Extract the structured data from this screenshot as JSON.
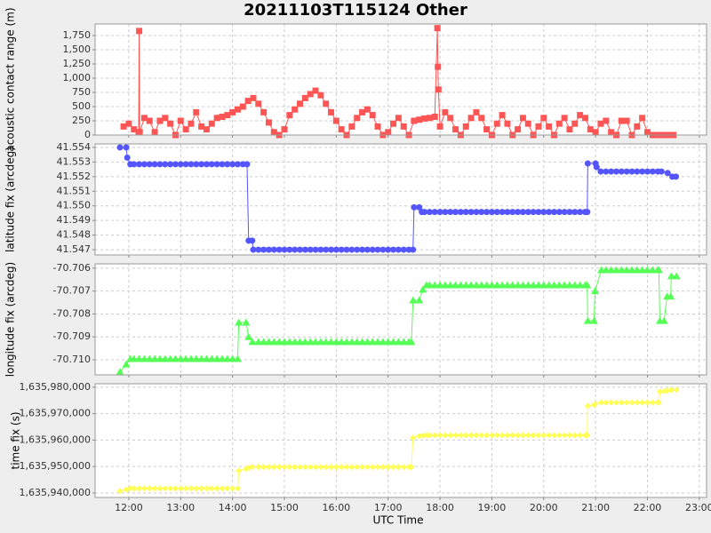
{
  "title": "20211103T115124 Other",
  "xlabel": "UTC Time",
  "xlim": [
    11.35,
    23.14
  ],
  "xticks": [
    {
      "value": 12,
      "label": "12:00"
    },
    {
      "value": 13,
      "label": "13:00"
    },
    {
      "value": 14,
      "label": "14:00"
    },
    {
      "value": 15,
      "label": "15:00"
    },
    {
      "value": 16,
      "label": "16:00"
    },
    {
      "value": 17,
      "label": "17:00"
    },
    {
      "value": 18,
      "label": "18:00"
    },
    {
      "value": 19,
      "label": "19:00"
    },
    {
      "value": 20,
      "label": "20:00"
    },
    {
      "value": 21,
      "label": "21:00"
    },
    {
      "value": 22,
      "label": "22:00"
    },
    {
      "value": 23,
      "label": "23:00"
    }
  ],
  "grid": true,
  "chart_data": [
    {
      "type": "line",
      "ylabel": "acoustic contact range (m)",
      "ylim": [
        0,
        1953
      ],
      "yticks": [
        0,
        250,
        500,
        750,
        {
          "value": 1000,
          "label": "1,000"
        },
        {
          "value": 1250,
          "label": "1,250"
        },
        {
          "value": 1500,
          "label": "1,500"
        },
        {
          "value": 1750,
          "label": "1,750"
        }
      ],
      "x": [
        11.9,
        12.0,
        12.1,
        12.19,
        12.2,
        12.21,
        12.3,
        12.4,
        12.5,
        12.6,
        12.7,
        12.8,
        12.9,
        13.0,
        13.1,
        13.2,
        13.3,
        13.4,
        13.5,
        13.6,
        13.7,
        13.8,
        13.9,
        14.0,
        14.1,
        14.2,
        14.3,
        14.4,
        14.5,
        14.6,
        14.7,
        14.8,
        14.9,
        15.0,
        15.1,
        15.2,
        15.3,
        15.4,
        15.5,
        15.6,
        15.7,
        15.8,
        15.9,
        16.0,
        16.1,
        16.2,
        16.3,
        16.4,
        16.5,
        16.6,
        16.7,
        16.8,
        16.9,
        17.0,
        17.1,
        17.2,
        17.3,
        17.4,
        17.5,
        17.6,
        17.7,
        17.8,
        17.9,
        17.95,
        17.96,
        17.97,
        18.0,
        18.1,
        18.2,
        18.3,
        18.4,
        18.5,
        18.6,
        18.7,
        18.8,
        18.9,
        19.0,
        19.1,
        19.2,
        19.3,
        19.4,
        19.5,
        19.6,
        19.7,
        19.8,
        19.9,
        20.0,
        20.1,
        20.2,
        20.3,
        20.4,
        20.5,
        20.6,
        20.7,
        20.8,
        20.9,
        21.0,
        21.1,
        21.2,
        21.3,
        21.4,
        21.5,
        21.6,
        21.7,
        21.8,
        21.9,
        22.0,
        22.1,
        22.2,
        22.3,
        22.4,
        22.5
      ],
      "series": [
        {
          "color": "#ff5555",
          "marker": "square",
          "values": [
            150,
            200,
            100,
            50,
            1830,
            50,
            300,
            250,
            50,
            250,
            300,
            200,
            0,
            250,
            100,
            200,
            400,
            150,
            100,
            200,
            300,
            320,
            350,
            400,
            450,
            500,
            600,
            650,
            550,
            400,
            220,
            50,
            0,
            100,
            350,
            450,
            550,
            650,
            720,
            780,
            700,
            550,
            400,
            250,
            100,
            0,
            150,
            300,
            400,
            450,
            350,
            150,
            0,
            50,
            200,
            300,
            150,
            0,
            250,
            270,
            290,
            300,
            320,
            1880,
            1200,
            800,
            150,
            400,
            300,
            100,
            0,
            150,
            300,
            400,
            300,
            100,
            0,
            200,
            350,
            200,
            0,
            100,
            300,
            200,
            0,
            150,
            300,
            150,
            0,
            200,
            300,
            100,
            200,
            350,
            300,
            100,
            50,
            200,
            250,
            50,
            0,
            250,
            250,
            0,
            150,
            300,
            50,
            0,
            0,
            0,
            0,
            0
          ]
        }
      ]
    },
    {
      "type": "line",
      "ylabel": "latitude fix (arcdeg)",
      "ylim": [
        41.54664,
        41.55424
      ],
      "yticks": [
        41.547,
        41.548,
        41.549,
        {
          "value": 41.55,
          "label": "41.550"
        },
        41.551,
        41.552,
        41.553,
        41.554
      ],
      "x": [
        11.83,
        11.95,
        11.97,
        12.03,
        12.1,
        12.2,
        12.3,
        12.4,
        12.5,
        12.6,
        12.7,
        12.8,
        12.9,
        13.0,
        13.1,
        13.2,
        13.3,
        13.4,
        13.5,
        13.6,
        13.7,
        13.8,
        13.9,
        14.0,
        14.1,
        14.2,
        14.28,
        14.31,
        14.38,
        14.4,
        14.5,
        14.6,
        14.7,
        14.8,
        14.9,
        15.0,
        15.1,
        15.2,
        15.3,
        15.4,
        15.5,
        15.6,
        15.7,
        15.8,
        15.9,
        16.0,
        16.1,
        16.2,
        16.3,
        16.4,
        16.5,
        16.6,
        16.7,
        16.8,
        16.9,
        17.0,
        17.1,
        17.2,
        17.3,
        17.4,
        17.48,
        17.5,
        17.6,
        17.65,
        17.7,
        17.8,
        17.9,
        18.0,
        18.1,
        18.2,
        18.3,
        18.4,
        18.5,
        18.6,
        18.7,
        18.8,
        18.9,
        19.0,
        19.1,
        19.2,
        19.3,
        19.4,
        19.5,
        19.6,
        19.7,
        19.8,
        19.9,
        20.0,
        20.1,
        20.2,
        20.3,
        20.4,
        20.5,
        20.6,
        20.7,
        20.8,
        20.84,
        20.85,
        21.0,
        21.02,
        21.1,
        21.2,
        21.3,
        21.4,
        21.5,
        21.6,
        21.7,
        21.8,
        21.9,
        22.0,
        22.1,
        22.2,
        22.27,
        22.39,
        22.48,
        22.55
      ],
      "series": [
        {
          "color": "#5555ff",
          "marker": "circle",
          "values": [
            41.554,
            41.554,
            41.5533,
            41.55285,
            41.55285,
            41.55285,
            41.55285,
            41.55285,
            41.55285,
            41.55285,
            41.55285,
            41.55285,
            41.55285,
            41.55285,
            41.55285,
            41.55285,
            41.55285,
            41.55285,
            41.55285,
            41.55285,
            41.55285,
            41.55285,
            41.55285,
            41.55285,
            41.55285,
            41.55285,
            41.55285,
            41.54762,
            41.54762,
            41.547,
            41.547,
            41.547,
            41.547,
            41.547,
            41.547,
            41.547,
            41.547,
            41.547,
            41.547,
            41.547,
            41.547,
            41.547,
            41.547,
            41.547,
            41.547,
            41.547,
            41.547,
            41.547,
            41.547,
            41.547,
            41.547,
            41.547,
            41.547,
            41.547,
            41.547,
            41.547,
            41.547,
            41.547,
            41.547,
            41.547,
            41.547,
            41.5499,
            41.5499,
            41.54958,
            41.54958,
            41.54958,
            41.54958,
            41.54958,
            41.54958,
            41.54958,
            41.54958,
            41.54958,
            41.54958,
            41.54958,
            41.54958,
            41.54958,
            41.54958,
            41.54958,
            41.54958,
            41.54958,
            41.54958,
            41.54958,
            41.54958,
            41.54958,
            41.54958,
            41.54958,
            41.54958,
            41.54958,
            41.54958,
            41.54958,
            41.54958,
            41.54958,
            41.54958,
            41.54958,
            41.54958,
            41.54958,
            41.54958,
            41.5529,
            41.5529,
            41.55265,
            41.55235,
            41.55235,
            41.55235,
            41.55235,
            41.55235,
            41.55235,
            41.55235,
            41.55235,
            41.55235,
            41.55235,
            41.55235,
            41.55235,
            41.55235,
            41.55225,
            41.552,
            41.552
          ]
        }
      ]
    },
    {
      "type": "line",
      "ylabel": "longitude fix (arcdeg)",
      "ylim": [
        -70.71066,
        -70.70581
      ],
      "yticks": [
        {
          "value": -70.71,
          "label": "-70.710"
        },
        -70.709,
        -70.708,
        -70.707,
        -70.706
      ],
      "x": [
        11.83,
        11.95,
        12.03,
        12.1,
        12.2,
        12.3,
        12.4,
        12.5,
        12.6,
        12.7,
        12.8,
        12.9,
        13.0,
        13.1,
        13.2,
        13.3,
        13.4,
        13.5,
        13.6,
        13.7,
        13.8,
        13.9,
        14.0,
        14.1,
        14.12,
        14.26,
        14.31,
        14.38,
        14.5,
        14.6,
        14.7,
        14.8,
        14.9,
        15.0,
        15.1,
        15.2,
        15.3,
        15.4,
        15.5,
        15.6,
        15.7,
        15.8,
        15.9,
        16.0,
        16.1,
        16.2,
        16.3,
        16.4,
        16.5,
        16.6,
        16.7,
        16.8,
        16.9,
        17.0,
        17.1,
        17.2,
        17.3,
        17.4,
        17.45,
        17.48,
        17.6,
        17.67,
        17.74,
        17.8,
        17.9,
        18.0,
        18.1,
        18.2,
        18.3,
        18.4,
        18.5,
        18.6,
        18.7,
        18.8,
        18.9,
        19.0,
        19.1,
        19.2,
        19.3,
        19.4,
        19.5,
        19.6,
        19.7,
        19.8,
        19.9,
        20.0,
        20.1,
        20.2,
        20.3,
        20.4,
        20.5,
        20.6,
        20.7,
        20.8,
        20.84,
        20.85,
        20.97,
        20.99,
        21.11,
        21.2,
        21.3,
        21.4,
        21.5,
        21.6,
        21.7,
        21.8,
        21.9,
        22.0,
        22.1,
        22.2,
        22.22,
        22.24,
        22.32,
        22.38,
        22.45,
        22.46,
        22.56
      ],
      "series": [
        {
          "color": "#55ff55",
          "marker": "triangle",
          "values": [
            -70.71053,
            -70.7102,
            -70.70996,
            -70.70996,
            -70.70996,
            -70.70996,
            -70.70996,
            -70.70996,
            -70.70996,
            -70.70996,
            -70.70996,
            -70.70996,
            -70.70996,
            -70.70996,
            -70.70996,
            -70.70996,
            -70.70996,
            -70.70996,
            -70.70996,
            -70.70996,
            -70.70996,
            -70.70996,
            -70.70996,
            -70.70996,
            -70.70837,
            -70.70837,
            -70.709,
            -70.70922,
            -70.70922,
            -70.70922,
            -70.70922,
            -70.70922,
            -70.70922,
            -70.70922,
            -70.70922,
            -70.70922,
            -70.70922,
            -70.70922,
            -70.70922,
            -70.70922,
            -70.70922,
            -70.70922,
            -70.70922,
            -70.70922,
            -70.70922,
            -70.70922,
            -70.70922,
            -70.70922,
            -70.70922,
            -70.70922,
            -70.70922,
            -70.70922,
            -70.70922,
            -70.70922,
            -70.70922,
            -70.70922,
            -70.70922,
            -70.70922,
            -70.70922,
            -70.7074,
            -70.7074,
            -70.70693,
            -70.70674,
            -70.70674,
            -70.70674,
            -70.70674,
            -70.70674,
            -70.70674,
            -70.70674,
            -70.70674,
            -70.70674,
            -70.70674,
            -70.70674,
            -70.70674,
            -70.70674,
            -70.70674,
            -70.70674,
            -70.70674,
            -70.70674,
            -70.70674,
            -70.70674,
            -70.70674,
            -70.70674,
            -70.70674,
            -70.70674,
            -70.70674,
            -70.70674,
            -70.70674,
            -70.70674,
            -70.70674,
            -70.70674,
            -70.70674,
            -70.70674,
            -70.70674,
            -70.70674,
            -70.7083,
            -70.7083,
            -70.707,
            -70.70608,
            -70.70608,
            -70.70608,
            -70.70608,
            -70.70608,
            -70.70608,
            -70.70608,
            -70.70608,
            -70.70608,
            -70.70608,
            -70.70608,
            -70.70608,
            -70.70608,
            -70.7083,
            -70.7083,
            -70.70723,
            -70.70723,
            -70.70635,
            -70.70635
          ]
        }
      ]
    },
    {
      "type": "line",
      "ylabel": "time fix (s)",
      "ylim": [
        1635938300,
        1635981300
      ],
      "yticks": [
        {
          "value": 1635940000,
          "label": "1,635,940,000"
        },
        {
          "value": 1635950000,
          "label": "1,635,950,000"
        },
        {
          "value": 1635960000,
          "label": "1,635,960,000"
        },
        {
          "value": 1635970000,
          "label": "1,635,970,000"
        },
        {
          "value": 1635980000,
          "label": "1,635,980,000"
        }
      ],
      "x": [
        11.83,
        11.95,
        12.03,
        12.1,
        12.2,
        12.3,
        12.4,
        12.5,
        12.6,
        12.7,
        12.8,
        12.9,
        13.0,
        13.1,
        13.2,
        13.3,
        13.4,
        13.5,
        13.6,
        13.7,
        13.8,
        13.9,
        14.0,
        14.1,
        14.12,
        14.26,
        14.31,
        14.38,
        14.5,
        14.6,
        14.7,
        14.8,
        14.9,
        15.0,
        15.1,
        15.2,
        15.3,
        15.4,
        15.5,
        15.6,
        15.7,
        15.8,
        15.9,
        16.0,
        16.1,
        16.2,
        16.3,
        16.4,
        16.5,
        16.6,
        16.7,
        16.8,
        16.9,
        17.0,
        17.1,
        17.2,
        17.3,
        17.4,
        17.45,
        17.48,
        17.6,
        17.67,
        17.74,
        17.8,
        17.9,
        18.0,
        18.1,
        18.2,
        18.3,
        18.4,
        18.5,
        18.6,
        18.7,
        18.8,
        18.9,
        19.0,
        19.1,
        19.2,
        19.3,
        19.4,
        19.5,
        19.6,
        19.7,
        19.8,
        19.9,
        20.0,
        20.1,
        20.2,
        20.3,
        20.4,
        20.5,
        20.6,
        20.7,
        20.8,
        20.84,
        20.85,
        20.97,
        20.99,
        21.11,
        21.2,
        21.3,
        21.4,
        21.5,
        21.6,
        21.7,
        21.8,
        21.9,
        22.0,
        22.1,
        22.2,
        22.22,
        22.24,
        22.32,
        22.38,
        22.45,
        22.46,
        22.56
      ],
      "series": [
        {
          "color": "#ffff55",
          "marker": "diamond",
          "values": [
            1635940700,
            1635941300,
            1635941700,
            1635941700,
            1635941700,
            1635941700,
            1635941700,
            1635941700,
            1635941700,
            1635941700,
            1635941700,
            1635941700,
            1635941700,
            1635941700,
            1635941700,
            1635941700,
            1635941700,
            1635941700,
            1635941700,
            1635941700,
            1635941700,
            1635941700,
            1635941700,
            1635941700,
            1635948400,
            1635949100,
            1635949500,
            1635949800,
            1635949800,
            1635949800,
            1635949800,
            1635949800,
            1635949800,
            1635949800,
            1635949800,
            1635949800,
            1635949800,
            1635949800,
            1635949800,
            1635949800,
            1635949800,
            1635949800,
            1635949800,
            1635949800,
            1635949800,
            1635949800,
            1635949800,
            1635949800,
            1635949800,
            1635949800,
            1635949800,
            1635949800,
            1635949800,
            1635949800,
            1635949800,
            1635949800,
            1635949800,
            1635949800,
            1635949800,
            1635960900,
            1635961500,
            1635961700,
            1635961800,
            1635961800,
            1635961800,
            1635961800,
            1635961800,
            1635961800,
            1635961800,
            1635961800,
            1635961800,
            1635961800,
            1635961800,
            1635961800,
            1635961800,
            1635961800,
            1635961800,
            1635961800,
            1635961800,
            1635961800,
            1635961800,
            1635961800,
            1635961800,
            1635961800,
            1635961800,
            1635961800,
            1635961800,
            1635961800,
            1635961800,
            1635961800,
            1635961800,
            1635961800,
            1635961800,
            1635961800,
            1635961800,
            1635972900,
            1635973300,
            1635973600,
            1635974200,
            1635974200,
            1635974200,
            1635974200,
            1635974200,
            1635974200,
            1635974200,
            1635974200,
            1635974200,
            1635974200,
            1635974200,
            1635974200,
            1635974200,
            1635978300,
            1635978500,
            1635978700,
            1635978900,
            1635978900,
            1635979000
          ]
        }
      ]
    }
  ]
}
